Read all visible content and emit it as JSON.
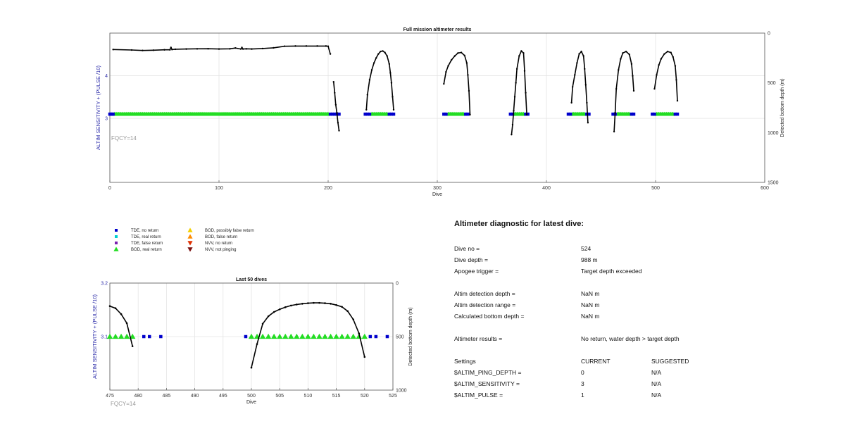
{
  "chart_data": [
    {
      "type": "scatter",
      "title": "Full mission altimeter results",
      "xlabel": "Dive",
      "ylabel": "ALTIM SENSITIVITY + (PULSE /10)",
      "ylabel_right": "Detected bottom depth (m)",
      "annotation": "FQCY=14",
      "xlim": [
        0,
        600
      ],
      "xticks": [
        "0",
        "100",
        "200",
        "300",
        "400",
        "500",
        "600"
      ],
      "ylim": [
        1.5,
        5
      ],
      "yticks": [
        "3",
        "4"
      ],
      "ylim_right": [
        0,
        1500
      ],
      "yticks_right": [
        "0",
        "500",
        "1000",
        "1500"
      ],
      "grid": true,
      "settings_level": 3.1,
      "tde_no_return_dives": [
        0,
        1,
        2,
        3,
        202,
        204,
        206,
        208,
        210,
        234,
        236,
        238,
        256,
        258,
        260,
        306,
        308,
        326,
        328,
        367,
        369,
        381,
        383,
        420,
        422,
        437,
        439,
        461,
        463,
        478,
        480,
        497,
        499,
        518,
        520
      ],
      "bod_real_return_ranges": [
        [
          4,
          200
        ],
        [
          240,
          254
        ],
        [
          310,
          324
        ],
        [
          371,
          379
        ],
        [
          424,
          435
        ],
        [
          465,
          476
        ],
        [
          501,
          516
        ]
      ],
      "bottom_depth_segments": [
        {
          "x": [
            3,
            20,
            30,
            40,
            50,
            55,
            56,
            57,
            60,
            70,
            80,
            90,
            100,
            110,
            115,
            120,
            121,
            122,
            125,
            130,
            140,
            150,
            160,
            170,
            180,
            190,
            198,
            200,
            202
          ],
          "y": [
            165,
            170,
            175,
            172,
            168,
            168,
            145,
            165,
            162,
            160,
            158,
            157,
            160,
            158,
            150,
            160,
            145,
            160,
            158,
            160,
            155,
            148,
            132,
            130,
            130,
            130,
            130,
            132,
            210
          ]
        },
        {
          "x": [
            205,
            206,
            207,
            208,
            209,
            210
          ],
          "y": [
            490,
            600,
            720,
            800,
            900,
            980
          ]
        },
        {
          "x": [
            235,
            236,
            238,
            240,
            242,
            244,
            246,
            248,
            250,
            252,
            254,
            256,
            257,
            258,
            259,
            260
          ],
          "y": [
            770,
            620,
            470,
            370,
            300,
            250,
            210,
            185,
            180,
            195,
            230,
            310,
            400,
            500,
            640,
            770
          ]
        },
        {
          "x": [
            306,
            308,
            310,
            313,
            316,
            319,
            322,
            325,
            327,
            328,
            329,
            330
          ],
          "y": [
            510,
            390,
            330,
            270,
            230,
            200,
            195,
            225,
            300,
            420,
            580,
            820
          ]
        },
        {
          "x": [
            368,
            369,
            370,
            371,
            372,
            373,
            375,
            377,
            379,
            380,
            381,
            382
          ],
          "y": [
            1020,
            920,
            780,
            640,
            500,
            360,
            230,
            180,
            200,
            380,
            600,
            820
          ]
        },
        {
          "x": [
            423,
            424,
            426,
            428,
            430,
            432,
            434,
            435,
            436,
            437,
            438
          ],
          "y": [
            700,
            540,
            420,
            300,
            210,
            185,
            230,
            360,
            520,
            700,
            900
          ]
        },
        {
          "x": [
            462,
            463,
            464,
            466,
            468,
            470,
            473,
            476,
            478,
            479,
            480
          ],
          "y": [
            990,
            800,
            560,
            370,
            260,
            200,
            185,
            215,
            310,
            430,
            580
          ]
        },
        {
          "x": [
            499,
            501,
            503,
            505,
            508,
            511,
            514,
            516,
            518,
            519,
            520
          ],
          "y": [
            560,
            420,
            320,
            260,
            210,
            185,
            195,
            240,
            330,
            470,
            680
          ]
        }
      ]
    },
    {
      "type": "scatter",
      "title": "Last 50 dives",
      "xlabel": "Dive",
      "ylabel": "ALTIM SENSITIVITY + (PULSE /10)",
      "ylabel_right": "Detected bottom depth (m)",
      "annotation": "FQCY=14",
      "xlim": [
        475,
        525
      ],
      "xticks": [
        "475",
        "480",
        "485",
        "490",
        "495",
        "500",
        "505",
        "510",
        "515",
        "520",
        "525"
      ],
      "ylim": [
        3.0,
        3.2
      ],
      "yticks": [
        "3.1",
        "3.2"
      ],
      "ylim_right": [
        0,
        1000
      ],
      "yticks_right": [
        "0",
        "500",
        "1000"
      ],
      "grid": true,
      "settings_level": 3.1,
      "tde_no_return_dives": [
        481,
        482,
        484,
        499,
        521,
        522,
        524
      ],
      "bod_real_return_dives": [
        475,
        476,
        477,
        478,
        479,
        500,
        501,
        502,
        503,
        504,
        505,
        506,
        507,
        508,
        509,
        510,
        511,
        512,
        513,
        514,
        515,
        516,
        517,
        518,
        519,
        520
      ],
      "bottom_depth_segments": [
        {
          "x": [
            475,
            476,
            477,
            478,
            479
          ],
          "y": [
            215,
            235,
            290,
            375,
            590
          ]
        },
        {
          "x": [
            500,
            501,
            502,
            503,
            504,
            505,
            506,
            507,
            508,
            509,
            510,
            511,
            512,
            513,
            514,
            515,
            516,
            517,
            518,
            519,
            520
          ],
          "y": [
            790,
            570,
            380,
            310,
            270,
            245,
            225,
            210,
            200,
            193,
            188,
            185,
            185,
            188,
            193,
            205,
            222,
            262,
            340,
            470,
            690
          ]
        }
      ]
    }
  ],
  "legend": [
    {
      "label": "TDE, no return",
      "color": "#0000cc",
      "shape": "square"
    },
    {
      "label": "TDE, real return",
      "color": "#00d0d0",
      "shape": "square"
    },
    {
      "label": "TDE, false return",
      "color": "#7a1fb0",
      "shape": "square"
    },
    {
      "label": "BOD, real return",
      "color": "#22dd22",
      "shape": "triangle-up"
    },
    {
      "label": "BOD, possibly false return",
      "color": "#f2d000",
      "shape": "triangle-up"
    },
    {
      "label": "BOD, false return",
      "color": "#ff8c00",
      "shape": "triangle-up"
    },
    {
      "label": "NVV, no return",
      "color": "#e03000",
      "shape": "triangle-down"
    },
    {
      "label": "NVV, not pinging",
      "color": "#7a1010",
      "shape": "triangle-down"
    }
  ],
  "diagnostic": {
    "title": "Altimeter diagnostic for latest dive:",
    "rows": [
      {
        "label": "Dive no =",
        "value": "524"
      },
      {
        "label": "Dive depth =",
        "value": "988 m"
      },
      {
        "label": "Apogee trigger =",
        "value": "Target depth exceeded"
      },
      {
        "label": "Altim detection depth =",
        "value": "NaN m"
      },
      {
        "label": "Altim detection range =",
        "value": "NaN m"
      },
      {
        "label": "Calculated bottom depth =",
        "value": "NaN m"
      },
      {
        "label": "Altimeter results =",
        "value": "No return, water depth > target depth"
      }
    ],
    "settings_header": {
      "label": "Settings",
      "current": "CURRENT",
      "suggested": "SUGGESTED"
    },
    "settings": [
      {
        "label": "$ALTIM_PING_DEPTH =",
        "current": "0",
        "suggested": "N/A"
      },
      {
        "label": "$ALTIM_SENSITIVITY =",
        "current": "3",
        "suggested": "N/A"
      },
      {
        "label": "$ALTIM_PULSE =",
        "current": "1",
        "suggested": "N/A"
      }
    ]
  }
}
